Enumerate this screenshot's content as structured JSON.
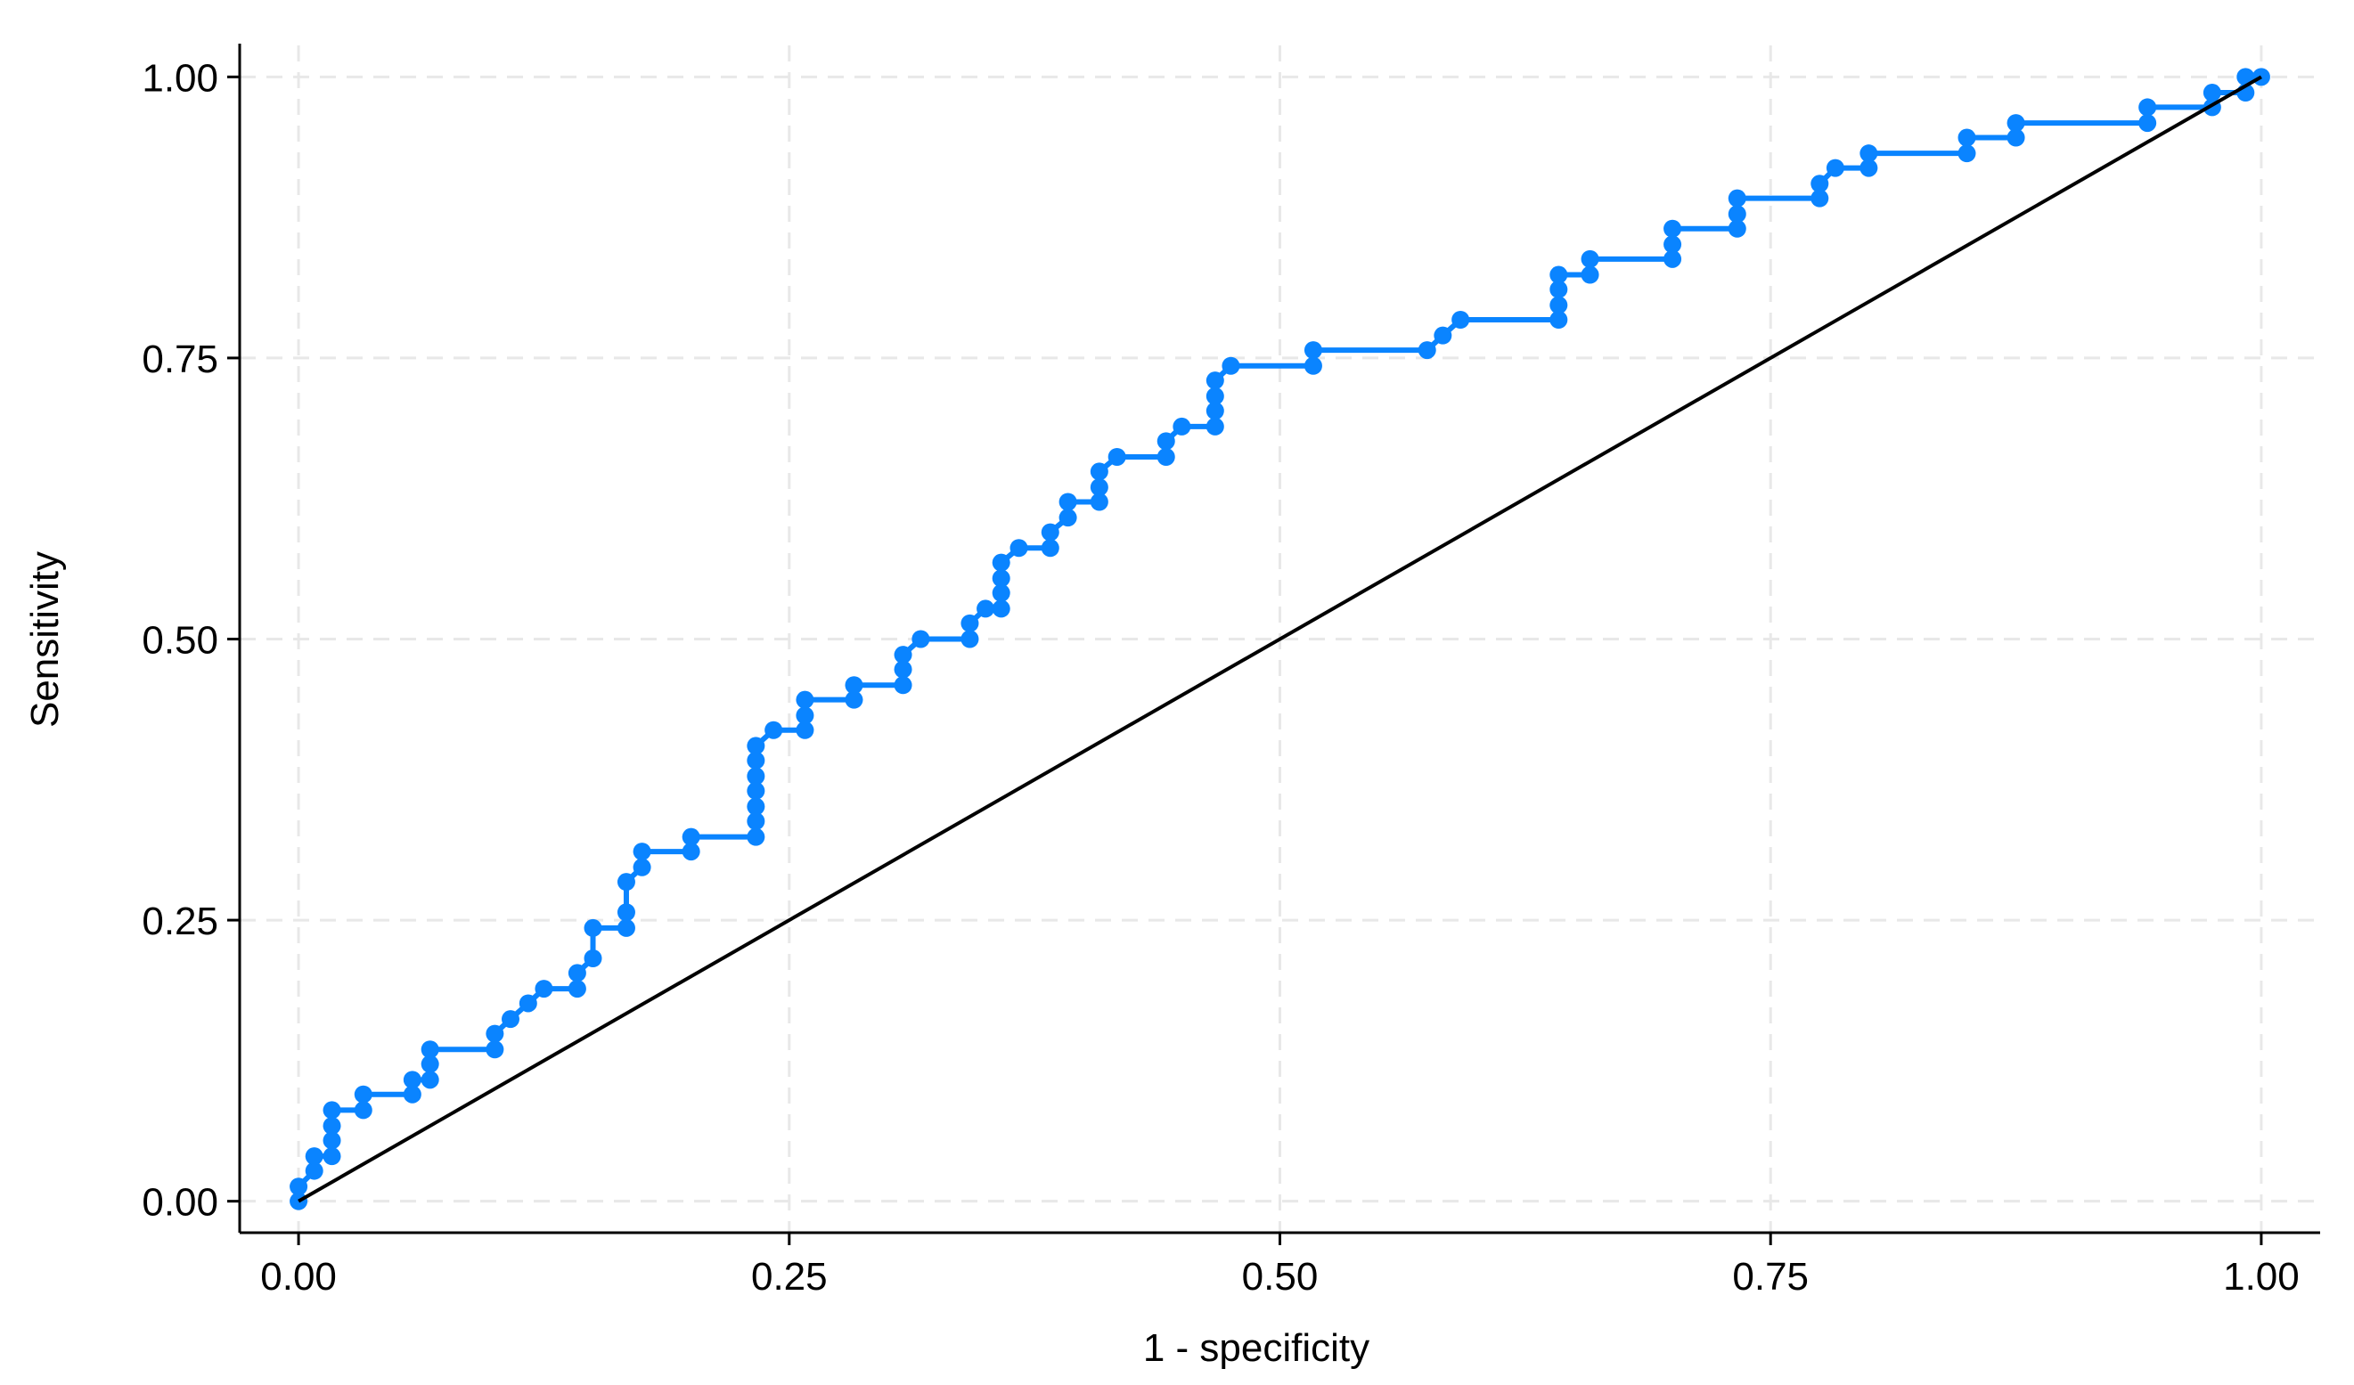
{
  "chart_data": {
    "type": "line",
    "xlabel": "1 - specificity",
    "ylabel": "Sensitivity",
    "color": "#0a84ff",
    "marker": "circle",
    "x": [
      0,
      0,
      0.008,
      0.008,
      0.017,
      0.017,
      0.017,
      0.017,
      0.033,
      0.033,
      0.058,
      0.058,
      0.067,
      0.067,
      0.067,
      0.1,
      0.1,
      0.108,
      0.117,
      0.125,
      0.142,
      0.142,
      0.15,
      0.15,
      0.167,
      0.167,
      0.167,
      0.175,
      0.175,
      0.2,
      0.2,
      0.233,
      0.233,
      0.233,
      0.233,
      0.233,
      0.233,
      0.233,
      0.242,
      0.258,
      0.258,
      0.258,
      0.283,
      0.283,
      0.308,
      0.308,
      0.308,
      0.317,
      0.342,
      0.342,
      0.35,
      0.358,
      0.358,
      0.358,
      0.358,
      0.367,
      0.383,
      0.383,
      0.392,
      0.392,
      0.408,
      0.408,
      0.408,
      0.417,
      0.442,
      0.442,
      0.45,
      0.467,
      0.467,
      0.467,
      0.467,
      0.475,
      0.517,
      0.517,
      0.575,
      0.583,
      0.592,
      0.642,
      0.642,
      0.642,
      0.642,
      0.658,
      0.658,
      0.7,
      0.7,
      0.7,
      0.733,
      0.733,
      0.733,
      0.775,
      0.775,
      0.783,
      0.8,
      0.8,
      0.85,
      0.85,
      0.875,
      0.875,
      0.942,
      0.942,
      0.975,
      0.975,
      0.992,
      0.992,
      1
    ],
    "values": [
      0,
      0.013,
      0.027,
      0.04,
      0.04,
      0.054,
      0.067,
      0.081,
      0.081,
      0.095,
      0.095,
      0.108,
      0.108,
      0.122,
      0.135,
      0.135,
      0.149,
      0.162,
      0.176,
      0.189,
      0.189,
      0.203,
      0.216,
      0.243,
      0.243,
      0.257,
      0.284,
      0.297,
      0.311,
      0.311,
      0.324,
      0.324,
      0.338,
      0.351,
      0.365,
      0.378,
      0.392,
      0.405,
      0.419,
      0.419,
      0.432,
      0.446,
      0.446,
      0.459,
      0.459,
      0.473,
      0.486,
      0.5,
      0.5,
      0.514,
      0.527,
      0.527,
      0.541,
      0.554,
      0.568,
      0.581,
      0.581,
      0.595,
      0.608,
      0.622,
      0.622,
      0.635,
      0.649,
      0.662,
      0.662,
      0.676,
      0.689,
      0.689,
      0.703,
      0.716,
      0.73,
      0.743,
      0.743,
      0.757,
      0.757,
      0.77,
      0.784,
      0.784,
      0.797,
      0.811,
      0.824,
      0.824,
      0.838,
      0.838,
      0.851,
      0.865,
      0.865,
      0.878,
      0.892,
      0.892,
      0.905,
      0.919,
      0.919,
      0.932,
      0.932,
      0.946,
      0.946,
      0.959,
      0.959,
      0.973,
      0.973,
      0.986,
      0.986,
      1,
      1
    ],
    "reference": {
      "x": [
        0,
        1
      ],
      "values": [
        0,
        1
      ],
      "color": "#000000"
    },
    "xlim": [
      -0.03,
      1.03
    ],
    "ylim": [
      -0.028,
      1.028
    ],
    "xticks": [
      {
        "value": 0,
        "label": "0.00"
      },
      {
        "value": 0.25,
        "label": "0.25"
      },
      {
        "value": 0.5,
        "label": "0.50"
      },
      {
        "value": 0.75,
        "label": "0.75"
      },
      {
        "value": 1,
        "label": "1.00"
      }
    ],
    "yticks": [
      {
        "value": 0,
        "label": "0.00"
      },
      {
        "value": 0.25,
        "label": "0.25"
      },
      {
        "value": 0.5,
        "label": "0.50"
      },
      {
        "value": 0.75,
        "label": "0.75"
      },
      {
        "value": 1,
        "label": "1.00"
      }
    ],
    "grid": true
  }
}
